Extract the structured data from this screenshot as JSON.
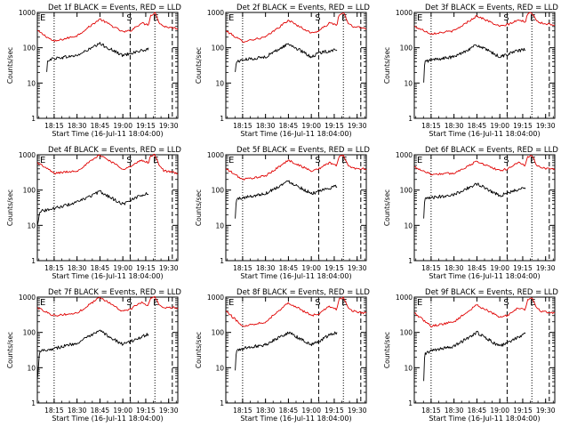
{
  "colors": {
    "events": "#000000",
    "lld": "#e00000",
    "axis": "#000000"
  },
  "chart_data": [
    {
      "type": "line",
      "title": "Det 1f BLACK = Events, RED = LLD",
      "ylabel": "Counts/sec",
      "xlabel": "Start Time (16-Jul-11 18:04:00)",
      "yscale": "log",
      "ylim": [
        1,
        1000
      ],
      "yticks": [
        1,
        10,
        100,
        1000
      ],
      "ytick_labels": [
        "1",
        "10",
        "100",
        "1000"
      ],
      "xlim": [
        18.0667,
        19.6
      ],
      "xticks": [
        18.25,
        18.5,
        18.75,
        19.0,
        19.25,
        19.5
      ],
      "xtick_labels": [
        "18:15",
        "18:30",
        "18:45",
        "19:00",
        "19:15",
        "19:30"
      ],
      "markers": [
        "E",
        "S",
        "E"
      ],
      "lines": [
        {
          "x": 18.25,
          "style": "dotted"
        },
        {
          "x": 19.08,
          "style": "dashed"
        },
        {
          "x": 19.35,
          "style": "dotted"
        },
        {
          "x": 19.54,
          "style": "dashed"
        }
      ],
      "series": [
        {
          "color": "lld",
          "x": [
            18.07,
            18.25,
            18.5,
            18.75,
            19.0,
            19.08,
            19.2,
            19.28,
            19.3,
            19.35,
            19.4,
            19.45,
            19.6
          ],
          "values": [
            300,
            150,
            220,
            650,
            280,
            300,
            500,
            450,
            800,
            1000,
            500,
            400,
            350
          ]
        },
        {
          "color": "events",
          "x": [
            18.17,
            18.18,
            18.25,
            18.5,
            18.75,
            19.0,
            19.08,
            19.18,
            19.28
          ],
          "values": [
            20,
            45,
            50,
            60,
            130,
            60,
            70,
            80,
            90
          ]
        }
      ]
    },
    {
      "type": "line",
      "title": "Det 2f BLACK = Events, RED = LLD",
      "ylabel": "Counts/sec",
      "xlabel": "Start Time (16-Jul-11 18:04:00)",
      "yscale": "log",
      "ylim": [
        1,
        1000
      ],
      "yticks": [
        1,
        10,
        100,
        1000
      ],
      "ytick_labels": [
        "1",
        "10",
        "100",
        "1000"
      ],
      "xlim": [
        18.0667,
        19.6
      ],
      "xticks": [
        18.25,
        18.5,
        18.75,
        19.0,
        19.25,
        19.5
      ],
      "xtick_labels": [
        "18:15",
        "18:30",
        "18:45",
        "19:00",
        "19:15",
        "19:30"
      ],
      "markers": [
        "E",
        "S",
        "E"
      ],
      "lines": [
        {
          "x": 18.25,
          "style": "dotted"
        },
        {
          "x": 19.08,
          "style": "dashed"
        },
        {
          "x": 19.35,
          "style": "dotted"
        },
        {
          "x": 19.54,
          "style": "dashed"
        }
      ],
      "series": [
        {
          "color": "lld",
          "x": [
            18.07,
            18.25,
            18.5,
            18.75,
            19.0,
            19.08,
            19.2,
            19.28,
            19.3,
            19.35,
            19.4,
            19.45,
            19.6
          ],
          "values": [
            300,
            150,
            200,
            600,
            260,
            300,
            500,
            450,
            800,
            1000,
            500,
            400,
            350
          ]
        },
        {
          "color": "events",
          "x": [
            18.17,
            18.18,
            18.25,
            18.5,
            18.75,
            19.0,
            19.08,
            19.18,
            19.28
          ],
          "values": [
            20,
            40,
            45,
            55,
            130,
            55,
            70,
            80,
            90
          ]
        }
      ]
    },
    {
      "type": "line",
      "title": "Det 3f BLACK = Events, RED = LLD",
      "ylabel": "Counts/sec",
      "xlabel": "Start Time (16-Jul-11 18:04:00)",
      "yscale": "log",
      "ylim": [
        1,
        1000
      ],
      "yticks": [
        1,
        10,
        100,
        1000
      ],
      "ytick_labels": [
        "1",
        "10",
        "100",
        "1000"
      ],
      "xlim": [
        18.0667,
        19.6
      ],
      "xticks": [
        18.25,
        18.5,
        18.75,
        19.0,
        19.25,
        19.5
      ],
      "xtick_labels": [
        "18:15",
        "18:30",
        "18:45",
        "19:00",
        "19:15",
        "19:30"
      ],
      "markers": [
        "E",
        "S",
        "E"
      ],
      "lines": [
        {
          "x": 18.25,
          "style": "dotted"
        },
        {
          "x": 19.08,
          "style": "dashed"
        },
        {
          "x": 19.35,
          "style": "dotted"
        },
        {
          "x": 19.54,
          "style": "dashed"
        }
      ],
      "series": [
        {
          "color": "lld",
          "x": [
            18.07,
            18.25,
            18.5,
            18.75,
            19.0,
            19.08,
            19.2,
            19.28,
            19.3,
            19.35,
            19.4,
            19.45,
            19.6
          ],
          "values": [
            400,
            250,
            300,
            800,
            400,
            450,
            600,
            550,
            850,
            1000,
            600,
            500,
            450
          ]
        },
        {
          "color": "events",
          "x": [
            18.17,
            18.18,
            18.25,
            18.5,
            18.75,
            19.0,
            19.08,
            19.18,
            19.28
          ],
          "values": [
            10,
            40,
            45,
            55,
            120,
            55,
            65,
            80,
            90
          ]
        }
      ]
    },
    {
      "type": "line",
      "title": "Det 4f BLACK = Events, RED = LLD",
      "ylabel": "Counts/sec",
      "xlabel": "Start Time (16-Jul-11 18:04:00)",
      "yscale": "log",
      "ylim": [
        1,
        1000
      ],
      "yticks": [
        1,
        10,
        100,
        1000
      ],
      "ytick_labels": [
        "1",
        "10",
        "100",
        "1000"
      ],
      "xlim": [
        18.0667,
        19.6
      ],
      "xticks": [
        18.25,
        18.5,
        18.75,
        19.0,
        19.25,
        19.5
      ],
      "xtick_labels": [
        "18:15",
        "18:30",
        "18:45",
        "19:00",
        "19:15",
        "19:30"
      ],
      "markers": [
        "E",
        "S",
        "E"
      ],
      "lines": [
        {
          "x": 18.25,
          "style": "dotted"
        },
        {
          "x": 19.08,
          "style": "dashed"
        },
        {
          "x": 19.35,
          "style": "dotted"
        },
        {
          "x": 19.54,
          "style": "dashed"
        }
      ],
      "series": [
        {
          "color": "lld",
          "x": [
            18.07,
            18.25,
            18.5,
            18.75,
            19.0,
            19.08,
            19.2,
            19.28,
            19.3,
            19.35,
            19.4,
            19.45,
            19.6
          ],
          "values": [
            600,
            300,
            350,
            1000,
            400,
            450,
            700,
            600,
            900,
            1000,
            500,
            350,
            300
          ]
        },
        {
          "color": "events",
          "x": [
            18.07,
            18.09,
            18.25,
            18.5,
            18.75,
            19.0,
            19.08,
            19.18,
            19.28
          ],
          "values": [
            10,
            25,
            30,
            45,
            90,
            40,
            50,
            70,
            80
          ]
        }
      ]
    },
    {
      "type": "line",
      "title": "Det 5f BLACK = Events, RED = LLD",
      "ylabel": "Counts/sec",
      "xlabel": "Start Time (16-Jul-11 18:04:00)",
      "yscale": "log",
      "ylim": [
        1,
        1000
      ],
      "yticks": [
        1,
        10,
        100,
        1000
      ],
      "ytick_labels": [
        "1",
        "10",
        "100",
        "1000"
      ],
      "xlim": [
        18.0667,
        19.6
      ],
      "xticks": [
        18.25,
        18.5,
        18.75,
        19.0,
        19.25,
        19.5
      ],
      "xtick_labels": [
        "18:15",
        "18:30",
        "18:45",
        "19:00",
        "19:15",
        "19:30"
      ],
      "markers": [
        "E",
        "S",
        "E"
      ],
      "lines": [
        {
          "x": 18.25,
          "style": "dotted"
        },
        {
          "x": 19.08,
          "style": "dashed"
        },
        {
          "x": 19.35,
          "style": "dotted"
        },
        {
          "x": 19.54,
          "style": "dashed"
        }
      ],
      "series": [
        {
          "color": "lld",
          "x": [
            18.07,
            18.25,
            18.5,
            18.75,
            19.0,
            19.08,
            19.2,
            19.28,
            19.3,
            19.35,
            19.4,
            19.45,
            19.6
          ],
          "values": [
            400,
            200,
            250,
            700,
            350,
            400,
            600,
            500,
            850,
            1000,
            500,
            420,
            400
          ]
        },
        {
          "color": "events",
          "x": [
            18.17,
            18.18,
            18.25,
            18.5,
            18.75,
            19.0,
            19.08,
            19.18,
            19.28
          ],
          "values": [
            15,
            55,
            60,
            80,
            180,
            80,
            90,
            110,
            130
          ]
        }
      ]
    },
    {
      "type": "line",
      "title": "Det 6f BLACK = Events, RED = LLD",
      "ylabel": "Counts/sec",
      "xlabel": "Start Time (16-Jul-11 18:04:00)",
      "yscale": "log",
      "ylim": [
        1,
        1000
      ],
      "yticks": [
        1,
        10,
        100,
        1000
      ],
      "ytick_labels": [
        "1",
        "10",
        "100",
        "1000"
      ],
      "xlim": [
        18.0667,
        19.6
      ],
      "xticks": [
        18.25,
        18.5,
        18.75,
        19.0,
        19.25,
        19.5
      ],
      "xtick_labels": [
        "18:15",
        "18:30",
        "18:45",
        "19:00",
        "19:15",
        "19:30"
      ],
      "markers": [
        "E",
        "S",
        "E"
      ],
      "lines": [
        {
          "x": 18.25,
          "style": "dotted"
        },
        {
          "x": 19.08,
          "style": "dashed"
        },
        {
          "x": 19.35,
          "style": "dotted"
        },
        {
          "x": 19.54,
          "style": "dashed"
        }
      ],
      "series": [
        {
          "color": "lld",
          "x": [
            18.07,
            18.25,
            18.5,
            18.75,
            19.0,
            19.08,
            19.2,
            19.28,
            19.3,
            19.35,
            19.4,
            19.45,
            19.6
          ],
          "values": [
            450,
            280,
            300,
            650,
            350,
            400,
            600,
            500,
            850,
            1000,
            500,
            420,
            400
          ]
        },
        {
          "color": "events",
          "x": [
            18.17,
            18.18,
            18.25,
            18.5,
            18.75,
            19.0,
            19.08,
            19.18,
            19.28
          ],
          "values": [
            15,
            55,
            60,
            75,
            150,
            70,
            80,
            100,
            120
          ]
        }
      ]
    },
    {
      "type": "line",
      "title": "Det 7f BLACK = Events, RED = LLD",
      "ylabel": "Counts/sec",
      "xlabel": "Start Time (16-Jul-11 18:04:00)",
      "yscale": "log",
      "ylim": [
        1,
        1000
      ],
      "yticks": [
        1,
        10,
        100,
        1000
      ],
      "ytick_labels": [
        "1",
        "10",
        "100",
        "1000"
      ],
      "xlim": [
        18.0667,
        19.6
      ],
      "xticks": [
        18.25,
        18.5,
        18.75,
        19.0,
        19.25,
        19.5
      ],
      "xtick_labels": [
        "18:15",
        "18:30",
        "18:45",
        "19:00",
        "19:15",
        "19:30"
      ],
      "markers": [
        "E",
        "S",
        "E"
      ],
      "lines": [
        {
          "x": 18.25,
          "style": "dotted"
        },
        {
          "x": 19.08,
          "style": "dashed"
        },
        {
          "x": 19.35,
          "style": "dotted"
        },
        {
          "x": 19.54,
          "style": "dashed"
        }
      ],
      "series": [
        {
          "color": "lld",
          "x": [
            18.07,
            18.25,
            18.5,
            18.75,
            19.0,
            19.08,
            19.2,
            19.28,
            19.3,
            19.35,
            19.4,
            19.45,
            19.6
          ],
          "values": [
            500,
            300,
            350,
            1000,
            400,
            450,
            700,
            600,
            900,
            1000,
            600,
            500,
            500
          ]
        },
        {
          "color": "events",
          "x": [
            18.07,
            18.09,
            18.25,
            18.5,
            18.75,
            19.0,
            19.08,
            19.18,
            19.28
          ],
          "values": [
            5,
            30,
            35,
            50,
            110,
            45,
            55,
            70,
            90
          ]
        }
      ]
    },
    {
      "type": "line",
      "title": "Det 8f BLACK = Events, RED = LLD",
      "ylabel": "Counts/sec",
      "xlabel": "Start Time (16-Jul-11 18:04:00)",
      "yscale": "log",
      "ylim": [
        1,
        1000
      ],
      "yticks": [
        1,
        10,
        100,
        1000
      ],
      "ytick_labels": [
        "1",
        "10",
        "100",
        "1000"
      ],
      "xlim": [
        18.0667,
        19.6
      ],
      "xticks": [
        18.25,
        18.5,
        18.75,
        19.0,
        19.25,
        19.5
      ],
      "xtick_labels": [
        "18:15",
        "18:30",
        "18:45",
        "19:00",
        "19:15",
        "19:30"
      ],
      "markers": [
        "E",
        "S",
        "E"
      ],
      "lines": [
        {
          "x": 18.25,
          "style": "dotted"
        },
        {
          "x": 19.08,
          "style": "dashed"
        },
        {
          "x": 19.35,
          "style": "dotted"
        },
        {
          "x": 19.54,
          "style": "dashed"
        }
      ],
      "series": [
        {
          "color": "lld",
          "x": [
            18.07,
            18.25,
            18.5,
            18.75,
            19.0,
            19.08,
            19.2,
            19.28,
            19.3,
            19.35,
            19.4,
            19.45,
            19.6
          ],
          "values": [
            400,
            150,
            200,
            700,
            300,
            330,
            550,
            450,
            850,
            1000,
            500,
            400,
            350
          ]
        },
        {
          "color": "events",
          "x": [
            18.17,
            18.18,
            18.25,
            18.5,
            18.75,
            19.0,
            19.08,
            19.18,
            19.28
          ],
          "values": [
            8,
            30,
            35,
            45,
            100,
            45,
            55,
            80,
            100
          ]
        }
      ]
    },
    {
      "type": "line",
      "title": "Det 9f BLACK = Events, RED = LLD",
      "ylabel": "Counts/sec",
      "xlabel": "Start Time (16-Jul-11 18:04:00)",
      "yscale": "log",
      "ylim": [
        1,
        1000
      ],
      "yticks": [
        1,
        10,
        100,
        1000
      ],
      "ytick_labels": [
        "1",
        "10",
        "100",
        "1000"
      ],
      "xlim": [
        18.0667,
        19.6
      ],
      "xticks": [
        18.25,
        18.5,
        18.75,
        19.0,
        19.25,
        19.5
      ],
      "xtick_labels": [
        "18:15",
        "18:30",
        "18:45",
        "19:00",
        "19:15",
        "19:30"
      ],
      "markers": [
        "E",
        "S",
        "E"
      ],
      "lines": [
        {
          "x": 18.25,
          "style": "dotted"
        },
        {
          "x": 19.08,
          "style": "dashed"
        },
        {
          "x": 19.35,
          "style": "dotted"
        },
        {
          "x": 19.54,
          "style": "dashed"
        }
      ],
      "series": [
        {
          "color": "lld",
          "x": [
            18.07,
            18.25,
            18.5,
            18.75,
            19.0,
            19.08,
            19.2,
            19.28,
            19.3,
            19.35,
            19.4,
            19.45,
            19.6
          ],
          "values": [
            350,
            150,
            200,
            600,
            270,
            300,
            500,
            450,
            800,
            1000,
            500,
            400,
            350
          ]
        },
        {
          "color": "events",
          "x": [
            18.17,
            18.18,
            18.25,
            18.5,
            18.75,
            19.0,
            19.08,
            19.18,
            19.28
          ],
          "values": [
            4,
            25,
            30,
            40,
            100,
            40,
            50,
            70,
            90
          ]
        }
      ]
    }
  ]
}
